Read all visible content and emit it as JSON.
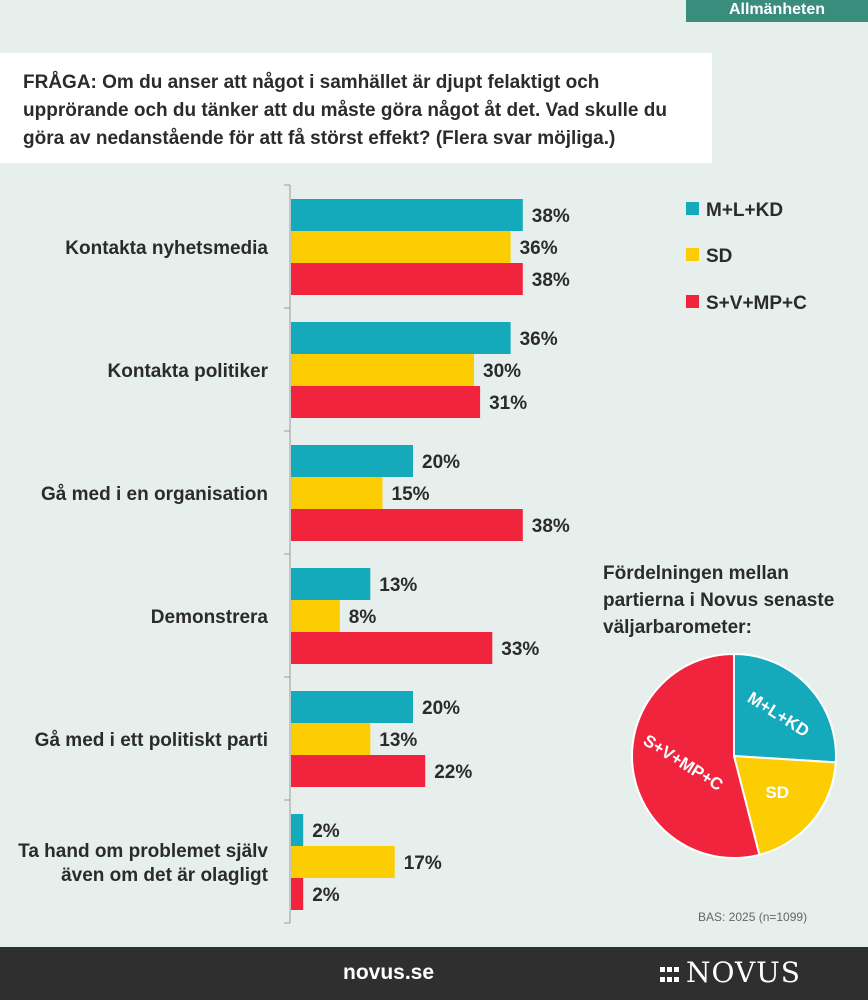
{
  "header": {
    "tag": "Allmänheten"
  },
  "question": "FRÅGA: Om du anser att något i samhället är djupt felaktigt och upprörande och du tänker att du måste göra något åt det. Vad skulle du göra av nedanstående för att få störst effekt? (Flera svar möjliga.)",
  "colors": {
    "cyan": "#14aabc",
    "yellow": "#fbcd02",
    "red": "#f0243c"
  },
  "legend": [
    {
      "label": "M+L+KD",
      "color": "#14aabc"
    },
    {
      "label": "SD",
      "color": "#fbcd02"
    },
    {
      "label": "S+V+MP+C",
      "color": "#f0243c"
    }
  ],
  "chart_data": [
    {
      "type": "bar",
      "orientation": "horizontal",
      "categories": [
        [
          "Kontakta nyhetsmedia"
        ],
        [
          "Kontakta politiker"
        ],
        [
          "Gå med i en organisation"
        ],
        [
          "Demonstrera"
        ],
        [
          "Gå med i ett politiskt parti"
        ],
        [
          "Ta hand om problemet själv",
          "även om det är olagligt"
        ]
      ],
      "series": [
        {
          "name": "M+L+KD",
          "values": [
            38,
            36,
            20,
            13,
            20,
            2
          ],
          "color": "#14aabc"
        },
        {
          "name": "SD",
          "values": [
            36,
            30,
            15,
            8,
            13,
            17
          ],
          "color": "#fbcd02"
        },
        {
          "name": "S+V+MP+C",
          "values": [
            38,
            31,
            38,
            33,
            22,
            2
          ],
          "color": "#f0243c"
        }
      ],
      "unit": "%",
      "xlim": [
        0,
        60
      ],
      "legend_position": "top-right"
    },
    {
      "type": "pie",
      "title": "Fördelningen mellan partierna i Novus senaste väljarbarometer:",
      "labels": [
        "M+L+KD",
        "SD",
        "S+V+MP+C"
      ],
      "values": [
        26,
        20,
        54
      ],
      "colors": [
        "#14aabc",
        "#fbcd02",
        "#f0243c"
      ]
    }
  ],
  "base": "BAS: 2025 (n=1099)",
  "footer": {
    "url": "novus.se",
    "logo": "NOVUS"
  }
}
